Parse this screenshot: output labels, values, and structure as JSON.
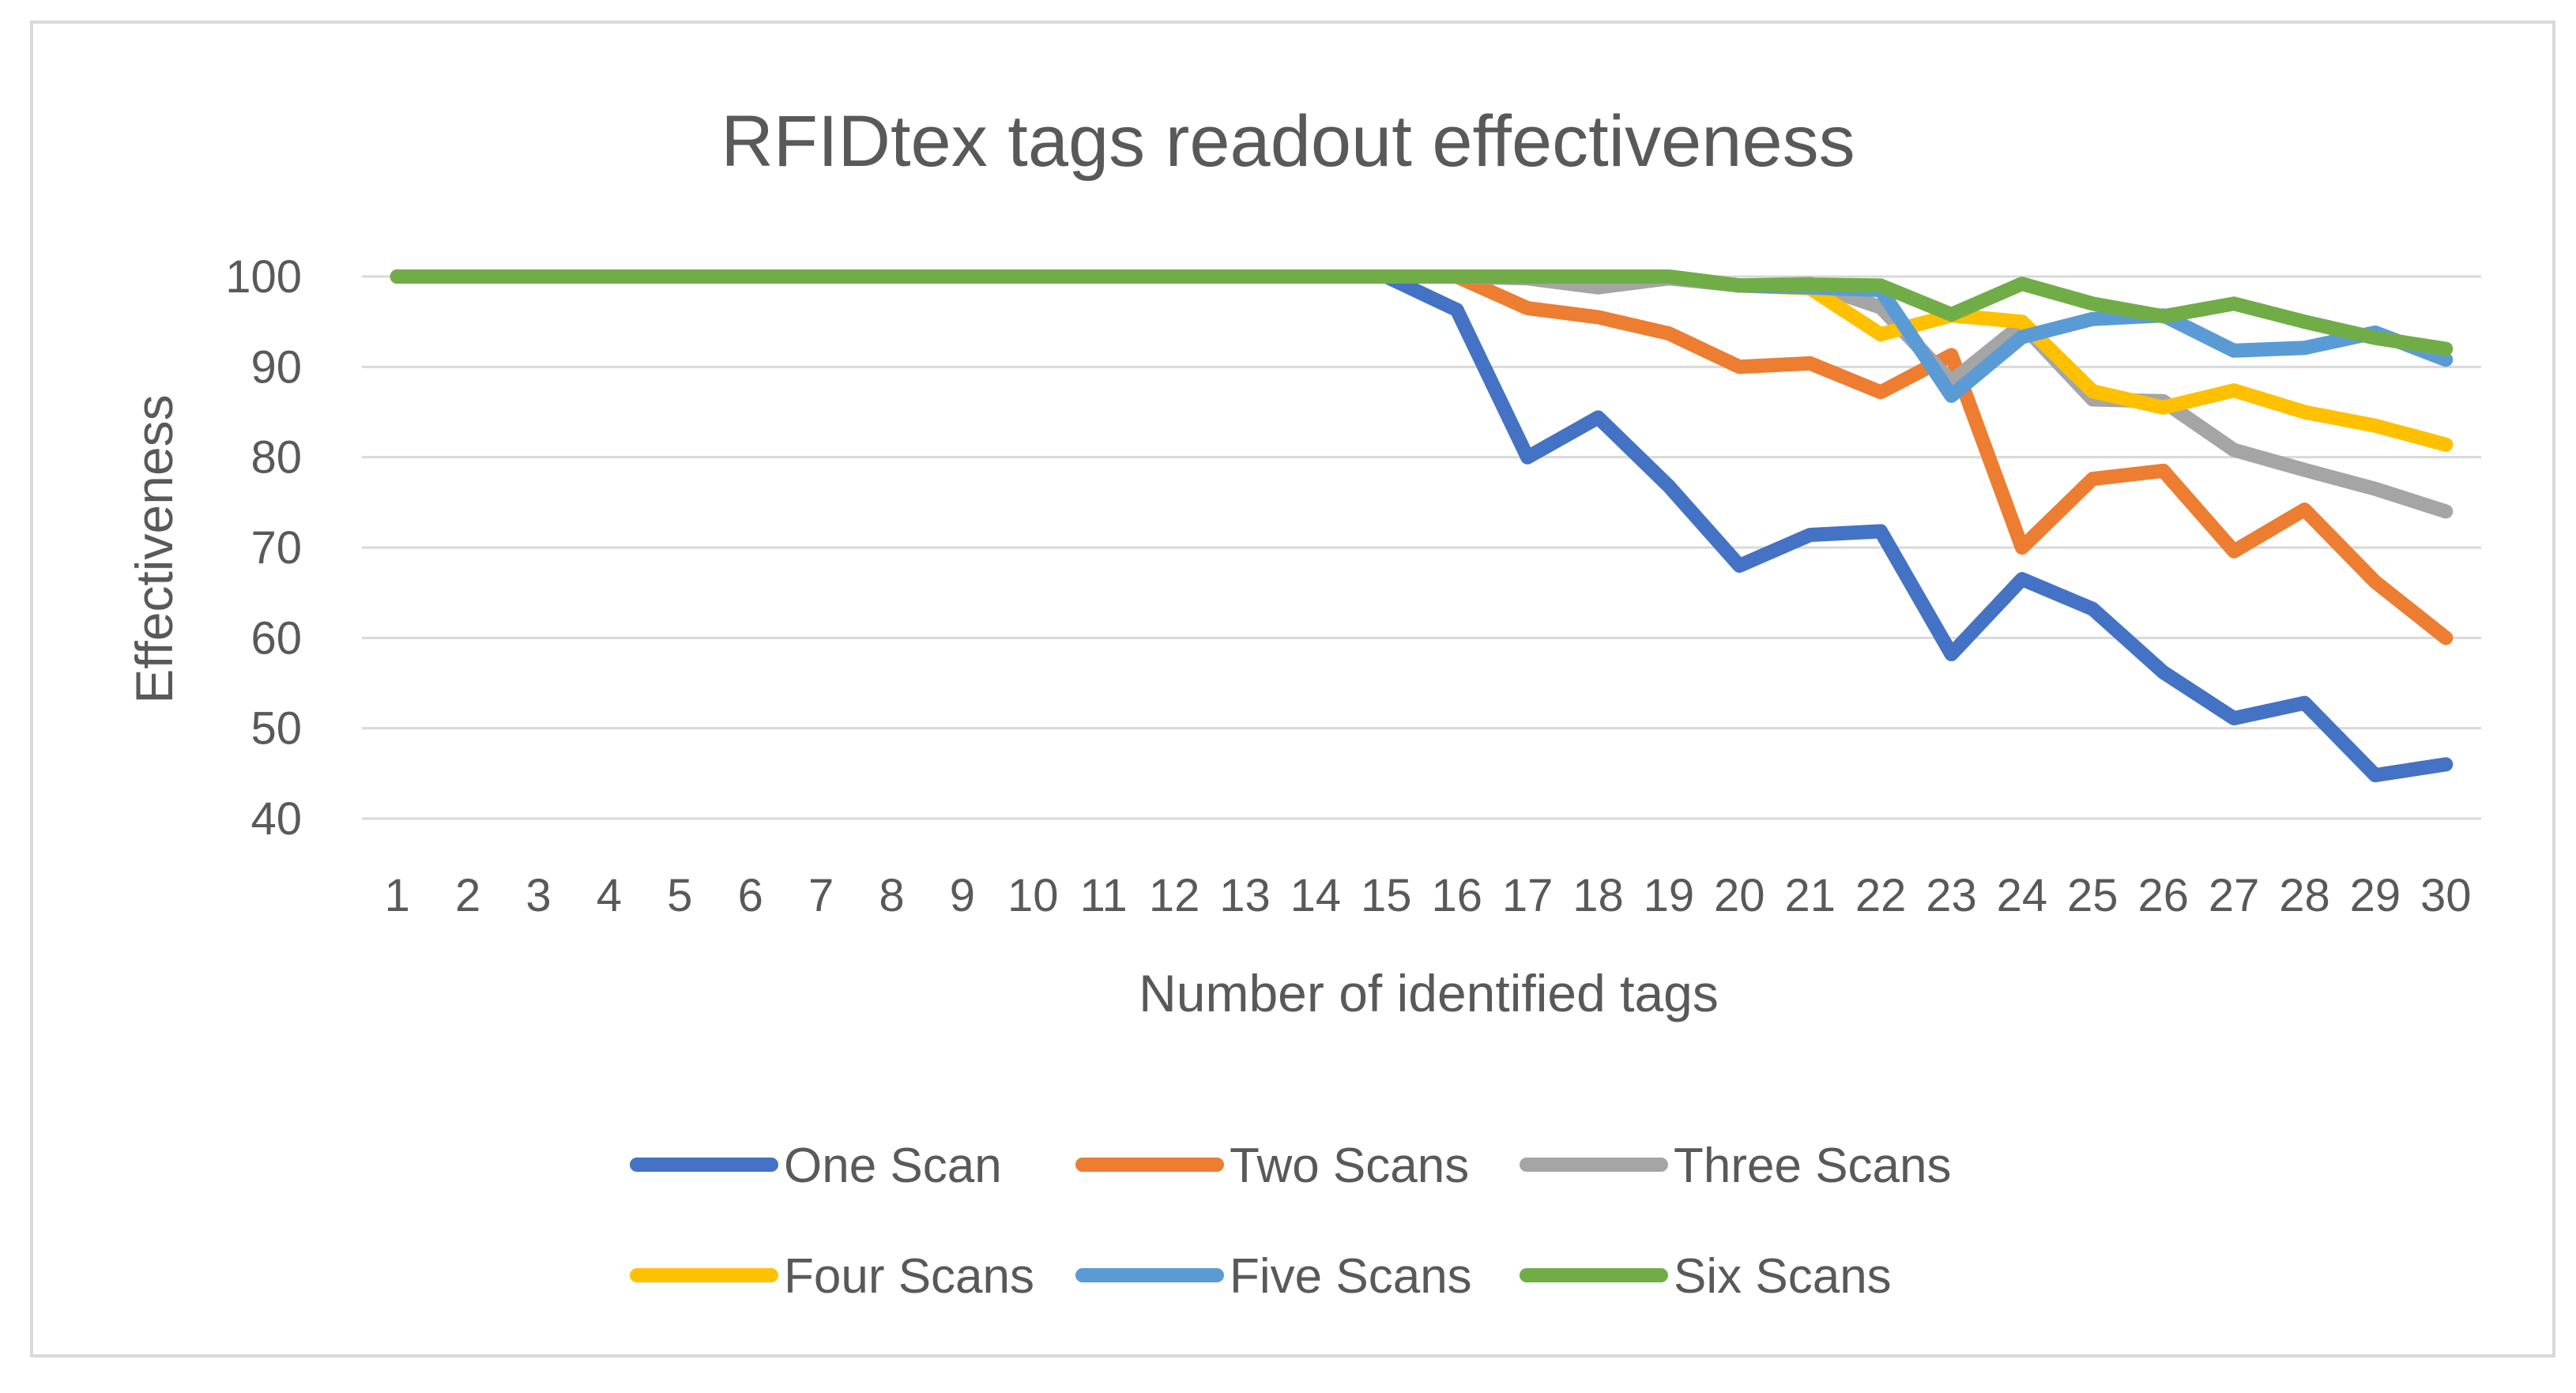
{
  "chart_data": {
    "type": "line",
    "title": "RFIDtex tags readout effectiveness",
    "xlabel": "Number of identified tags",
    "ylabel": "Effectiveness",
    "ylim": [
      40,
      100
    ],
    "yticks": [
      "40",
      "50",
      "60",
      "70",
      "80",
      "90",
      "100"
    ],
    "x": [
      "1",
      "2",
      "3",
      "4",
      "5",
      "6",
      "7",
      "8",
      "9",
      "10",
      "11",
      "12",
      "13",
      "14",
      "15",
      "16",
      "17",
      "18",
      "19",
      "20",
      "21",
      "22",
      "23",
      "24",
      "25",
      "26",
      "27",
      "28",
      "29",
      "30"
    ],
    "grid": true,
    "legend_position": "bottom",
    "series": [
      {
        "name": "One Scan",
        "color": "#4472c4",
        "values": [
          100,
          100,
          100,
          100,
          100,
          100,
          100,
          100,
          100,
          100,
          100,
          100,
          100,
          100,
          100,
          96.3,
          80,
          84.4,
          76.8,
          68,
          71.4,
          71.8,
          58.2,
          66.5,
          63.2,
          56.2,
          51.1,
          52.8,
          44.8,
          46
        ]
      },
      {
        "name": "Two Scans",
        "color": "#ed7d31",
        "values": [
          100,
          100,
          100,
          100,
          100,
          100,
          100,
          100,
          100,
          100,
          100,
          100,
          100,
          100,
          100,
          100,
          96.5,
          95.5,
          93.7,
          90,
          90.4,
          87.2,
          91.3,
          70,
          77.6,
          78.5,
          69.6,
          74.2,
          66.2,
          60
        ]
      },
      {
        "name": "Three Scans",
        "color": "#a5a5a5",
        "values": [
          100,
          100,
          100,
          100,
          100,
          100,
          100,
          100,
          100,
          100,
          100,
          100,
          100,
          100,
          100,
          100,
          99.8,
          98.8,
          99.8,
          99,
          99.2,
          96.6,
          88.4,
          94.7,
          86.4,
          86.2,
          80.8,
          78.6,
          76.5,
          74
        ]
      },
      {
        "name": "Four Scans",
        "color": "#ffc000",
        "values": [
          100,
          100,
          100,
          100,
          100,
          100,
          100,
          100,
          100,
          100,
          100,
          100,
          100,
          100,
          100,
          100,
          100,
          100,
          100,
          99,
          98.7,
          93.6,
          95.7,
          95,
          87.3,
          85.5,
          87.4,
          85,
          83.5,
          81.4
        ]
      },
      {
        "name": "Five Scans",
        "color": "#5b9bd5",
        "values": [
          100,
          100,
          100,
          100,
          100,
          100,
          100,
          100,
          100,
          100,
          100,
          100,
          100,
          100,
          100,
          100,
          100,
          100,
          100,
          99,
          98.8,
          98.5,
          86.8,
          93.3,
          95.3,
          95.7,
          91.8,
          92.1,
          93.8,
          90.8
        ]
      },
      {
        "name": "Six Scans",
        "color": "#70ad47",
        "values": [
          100,
          100,
          100,
          100,
          100,
          100,
          100,
          100,
          100,
          100,
          100,
          100,
          100,
          100,
          100,
          100,
          100,
          100,
          100,
          99,
          99.1,
          99,
          95.8,
          99.2,
          97,
          95.6,
          97,
          95,
          93.2,
          92
        ]
      }
    ]
  }
}
